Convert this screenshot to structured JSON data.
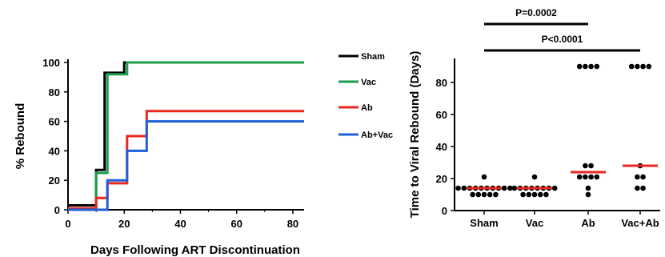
{
  "chart_data": [
    {
      "type": "line",
      "subtype": "step",
      "xlabel": "Days Following ART Discontinuation",
      "ylabel": "% Rebound",
      "xlim": [
        0,
        84
      ],
      "ylim": [
        0,
        100
      ],
      "xticks": [
        "0",
        "20",
        "40",
        "60",
        "80"
      ],
      "yticks": [
        "0",
        "20",
        "40",
        "60",
        "80",
        "100"
      ],
      "legend_position": "right",
      "series": [
        {
          "name": "Sham",
          "color": "#000000",
          "points": [
            [
              0,
              3
            ],
            [
              10,
              3
            ],
            [
              10,
              27
            ],
            [
              13,
              27
            ],
            [
              13,
              93
            ],
            [
              20,
              93
            ],
            [
              20,
              100
            ],
            [
              84,
              100
            ]
          ]
        },
        {
          "name": "Vac",
          "color": "#1a9e4a",
          "points": [
            [
              0,
              0
            ],
            [
              10,
              0
            ],
            [
              10,
              25
            ],
            [
              14,
              25
            ],
            [
              14,
              92
            ],
            [
              21,
              92
            ],
            [
              21,
              100
            ],
            [
              84,
              100
            ]
          ]
        },
        {
          "name": "Ab",
          "color": "#e8281f",
          "points": [
            [
              0,
              1
            ],
            [
              10,
              1
            ],
            [
              10,
              8
            ],
            [
              14,
              8
            ],
            [
              14,
              18
            ],
            [
              21,
              18
            ],
            [
              21,
              50
            ],
            [
              28,
              50
            ],
            [
              28,
              67
            ],
            [
              84,
              67
            ]
          ]
        },
        {
          "name": "Ab+Vac",
          "color": "#1f5fd6",
          "points": [
            [
              0,
              0
            ],
            [
              14,
              0
            ],
            [
              14,
              20
            ],
            [
              21,
              20
            ],
            [
              21,
              40
            ],
            [
              28,
              40
            ],
            [
              28,
              60
            ],
            [
              84,
              60
            ]
          ]
        }
      ]
    },
    {
      "type": "scatter",
      "subtype": "dot-plot",
      "xlabel": "",
      "ylabel": "Time to Viral  Rebound (Days)",
      "ylim": [
        0,
        95
      ],
      "yticks": [
        "0",
        "20",
        "40",
        "60",
        "80"
      ],
      "categories": [
        "Sham",
        "Vac",
        "Ab",
        "Vac+Ab"
      ],
      "median_color": "#e8281f",
      "series": [
        {
          "category": "Sham",
          "values": [
            21,
            14,
            14,
            14,
            14,
            14,
            14,
            14,
            14,
            14,
            14,
            10,
            10,
            10,
            10,
            10
          ],
          "median": 14
        },
        {
          "category": "Vac",
          "values": [
            21,
            14,
            14,
            14,
            14,
            14,
            14,
            14,
            14,
            10,
            10,
            10,
            10,
            10
          ],
          "median": 14
        },
        {
          "category": "Ab",
          "values": [
            90,
            90,
            90,
            90,
            28,
            28,
            21,
            21,
            21,
            21,
            14,
            10
          ],
          "median": 24
        },
        {
          "category": "Vac+Ab",
          "values": [
            90,
            90,
            90,
            90,
            28,
            21,
            21,
            14,
            14
          ],
          "median": 28
        }
      ],
      "comparisons": [
        {
          "from": "Sham",
          "to": "Ab",
          "label": "P=0.0002"
        },
        {
          "from": "Sham",
          "to": "Vac+Ab",
          "label": "P<0.0001"
        }
      ]
    }
  ]
}
